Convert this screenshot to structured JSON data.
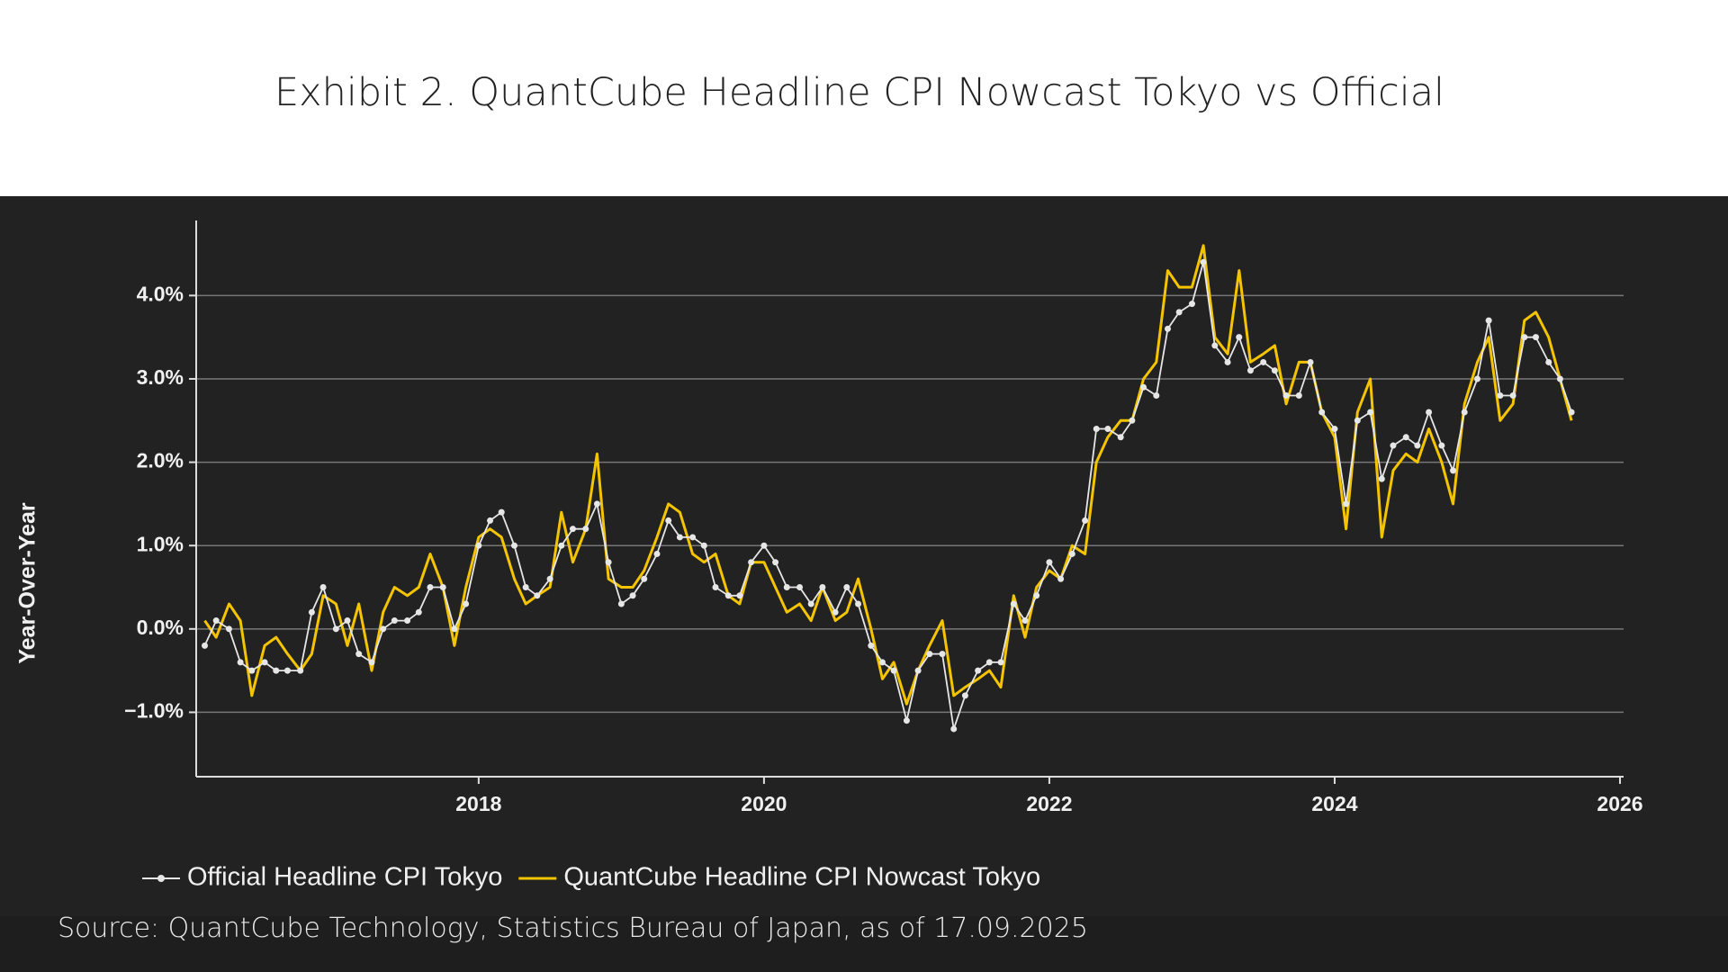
{
  "chart_data": {
    "type": "line",
    "title": "Exhibit 2. QuantCube Headline CPI Nowcast Tokyo vs Official",
    "ylabel": "Year-Over-Year",
    "source": "Source: QuantCube Technology, Statistics Bureau of Japan, as of 17.09.2025",
    "legend": "bottom",
    "grid": true,
    "xlim": [
      2016.02,
      2026.0
    ],
    "xticks": [
      2018,
      2020,
      2022,
      2024,
      2026
    ],
    "ylim": [
      -1.6,
      4.9
    ],
    "yticks": [
      {
        "value": -1,
        "label": "−1.0%"
      },
      {
        "value": 0,
        "label": "0.0%"
      },
      {
        "value": 1,
        "label": "1.0%"
      },
      {
        "value": 2,
        "label": "2.0%"
      },
      {
        "value": 3,
        "label": "3.0%"
      },
      {
        "value": 4,
        "label": "4.0%"
      }
    ],
    "x": [
      2016.08,
      2016.16,
      2016.25,
      2016.33,
      2016.41,
      2016.5,
      2016.58,
      2016.66,
      2016.75,
      2016.83,
      2016.91,
      2017.0,
      2017.08,
      2017.16,
      2017.25,
      2017.33,
      2017.41,
      2017.5,
      2017.58,
      2017.66,
      2017.75,
      2017.83,
      2017.91,
      2018.0,
      2018.08,
      2018.16,
      2018.25,
      2018.33,
      2018.41,
      2018.5,
      2018.58,
      2018.66,
      2018.75,
      2018.83,
      2018.91,
      2019.0,
      2019.08,
      2019.16,
      2019.25,
      2019.33,
      2019.41,
      2019.5,
      2019.58,
      2019.66,
      2019.75,
      2019.83,
      2019.91,
      2020.0,
      2020.08,
      2020.16,
      2020.25,
      2020.33,
      2020.41,
      2020.5,
      2020.58,
      2020.66,
      2020.75,
      2020.83,
      2020.91,
      2021.0,
      2021.08,
      2021.16,
      2021.25,
      2021.33,
      2021.41,
      2021.5,
      2021.58,
      2021.66,
      2021.75,
      2021.83,
      2021.91,
      2022.0,
      2022.08,
      2022.16,
      2022.25,
      2022.33,
      2022.41,
      2022.5,
      2022.58,
      2022.66,
      2022.75,
      2022.83,
      2022.91,
      2023.0,
      2023.08,
      2023.16,
      2023.25,
      2023.33,
      2023.41,
      2023.5,
      2023.58,
      2023.66,
      2023.75,
      2023.83,
      2023.91,
      2024.0,
      2024.08,
      2024.16,
      2024.25,
      2024.33,
      2024.41,
      2024.5,
      2024.58,
      2024.66,
      2024.75,
      2024.83,
      2024.91,
      2025.0,
      2025.08,
      2025.16,
      2025.25,
      2025.33,
      2025.41,
      2025.5,
      2025.58,
      2025.66
    ],
    "series": [
      {
        "name": "Official Headline CPI Tokyo",
        "color": "#e6e6e6",
        "marker": true,
        "values": [
          -0.2,
          0.1,
          0.0,
          -0.4,
          -0.5,
          -0.4,
          -0.5,
          -0.5,
          -0.5,
          0.2,
          0.5,
          0.0,
          0.1,
          -0.3,
          -0.4,
          0.0,
          0.1,
          0.1,
          0.2,
          0.5,
          0.5,
          0.0,
          0.3,
          1.0,
          1.3,
          1.4,
          1.0,
          0.5,
          0.4,
          0.6,
          1.0,
          1.2,
          1.2,
          1.5,
          0.8,
          0.3,
          0.4,
          0.6,
          0.9,
          1.3,
          1.1,
          1.1,
          1.0,
          0.5,
          0.4,
          0.4,
          0.8,
          1.0,
          0.8,
          0.5,
          0.5,
          0.3,
          0.5,
          0.2,
          0.5,
          0.3,
          -0.2,
          -0.4,
          -0.5,
          -1.1,
          -0.5,
          -0.3,
          -0.3,
          -1.2,
          -0.8,
          -0.5,
          -0.4,
          -0.4,
          0.3,
          0.1,
          0.4,
          0.8,
          0.6,
          0.9,
          1.3,
          2.4,
          2.4,
          2.3,
          2.5,
          2.9,
          2.8,
          3.6,
          3.8,
          3.9,
          4.4,
          3.4,
          3.2,
          3.5,
          3.1,
          3.2,
          3.1,
          2.8,
          2.8,
          3.2,
          2.6,
          2.4,
          1.5,
          2.5,
          2.6,
          1.8,
          2.2,
          2.3,
          2.2,
          2.6,
          2.2,
          1.9,
          2.6,
          3.0,
          3.7,
          2.8,
          2.8,
          3.5,
          3.5,
          3.2,
          3.0,
          2.6
        ]
      },
      {
        "name": "QuantCube Headline CPI Nowcast Tokyo",
        "color": "#f5c400",
        "marker": false,
        "values": [
          0.1,
          -0.1,
          0.3,
          0.1,
          -0.8,
          -0.2,
          -0.1,
          -0.3,
          -0.5,
          -0.3,
          0.4,
          0.3,
          -0.2,
          0.3,
          -0.5,
          0.2,
          0.5,
          0.4,
          0.5,
          0.9,
          0.5,
          -0.2,
          0.5,
          1.1,
          1.2,
          1.1,
          0.6,
          0.3,
          0.4,
          0.5,
          1.4,
          0.8,
          1.2,
          2.1,
          0.6,
          0.5,
          0.5,
          0.7,
          1.1,
          1.5,
          1.4,
          0.9,
          0.8,
          0.9,
          0.4,
          0.3,
          0.8,
          0.8,
          0.5,
          0.2,
          0.3,
          0.1,
          0.5,
          0.1,
          0.2,
          0.6,
          0.0,
          -0.6,
          -0.4,
          -0.9,
          -0.5,
          -0.2,
          0.1,
          -0.8,
          -0.7,
          -0.6,
          -0.5,
          -0.7,
          0.4,
          -0.1,
          0.5,
          0.7,
          0.6,
          1.0,
          0.9,
          2.0,
          2.3,
          2.5,
          2.5,
          3.0,
          3.2,
          4.3,
          4.1,
          4.1,
          4.6,
          3.5,
          3.3,
          4.3,
          3.2,
          3.3,
          3.4,
          2.7,
          3.2,
          3.2,
          2.6,
          2.3,
          1.2,
          2.6,
          3.0,
          1.1,
          1.9,
          2.1,
          2.0,
          2.4,
          2.0,
          1.5,
          2.7,
          3.2,
          3.5,
          2.5,
          2.7,
          3.7,
          3.8,
          3.5,
          3.0,
          2.5
        ]
      }
    ]
  }
}
